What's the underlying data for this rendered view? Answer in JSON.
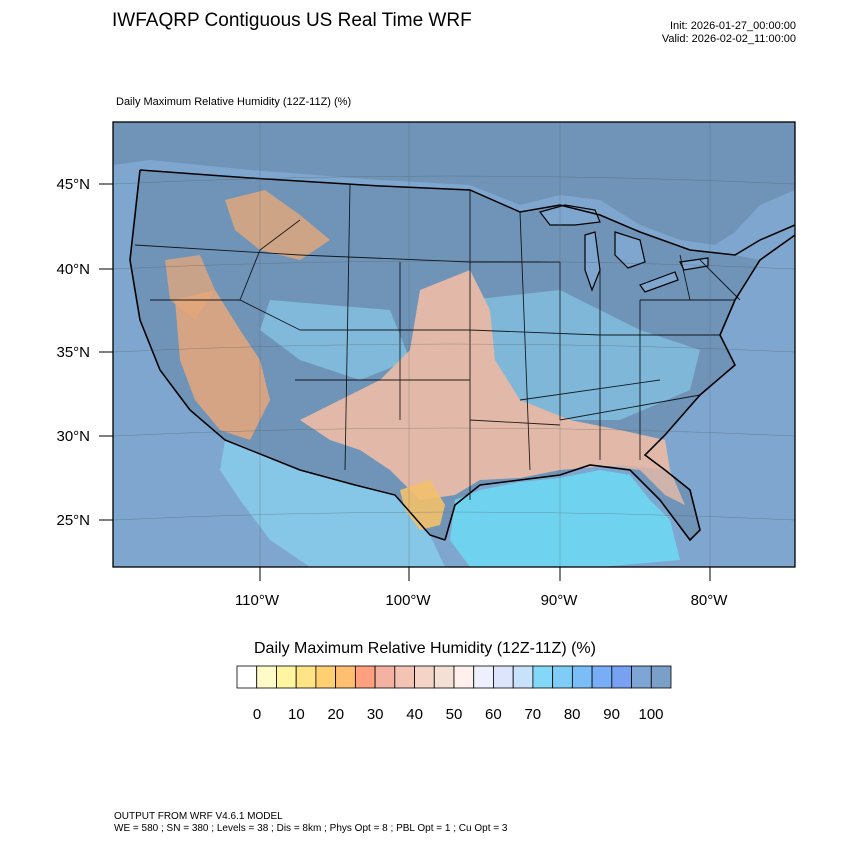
{
  "header": {
    "title": "IWFAQRP Contiguous US Real Time WRF",
    "init": "Init: 2026-01-27_00:00:00",
    "valid": "Valid: 2026-02-02_11:00:00",
    "subtitle": "Daily Maximum Relative Humidity (12Z-11Z)   (%)"
  },
  "map": {
    "lat_labels": [
      "45°N",
      "40°N",
      "35°N",
      "30°N",
      "25°N"
    ],
    "lon_labels": [
      "110°W",
      "100°W",
      "90°W",
      "80°W"
    ],
    "colors": {
      "ocean": "#7ea6cf",
      "land_humid": "#6f94b8",
      "dry_orange": "#e6a77a",
      "very_dry": "#f3c06a",
      "moderate": "#e2b9a8",
      "mid_blue": "#86c6e6",
      "gulf_cyan": "#6fd3ef",
      "border": "#000000"
    }
  },
  "legend": {
    "title": "Daily Maximum Relative Humidity (12Z-11Z)  (%)",
    "tick_labels": [
      "0",
      "10",
      "20",
      "30",
      "40",
      "50",
      "60",
      "70",
      "80",
      "90",
      "100"
    ],
    "colors": [
      "#ffffff",
      "#fffbc7",
      "#fff59e",
      "#ffe485",
      "#ffd072",
      "#ffbf70",
      "#ffa07e",
      "#f4b2a2",
      "#f3c3b3",
      "#f4d4c6",
      "#f4e0d5",
      "#fff0ee",
      "#eef0fe",
      "#dde5fd",
      "#c9e2fc",
      "#83d8f7",
      "#7fcdf7",
      "#7bbdf7",
      "#78aef5",
      "#77a1f1",
      "#7ea6d4",
      "#7a9fc9"
    ]
  },
  "footer": {
    "line1": "OUTPUT FROM WRF V4.6.1 MODEL",
    "line2": "WE = 580 ; SN = 380 ; Levels = 38 ; Dis = 8km ; Phys Opt = 8 ; PBL Opt = 1 ; Cu Opt = 3"
  }
}
